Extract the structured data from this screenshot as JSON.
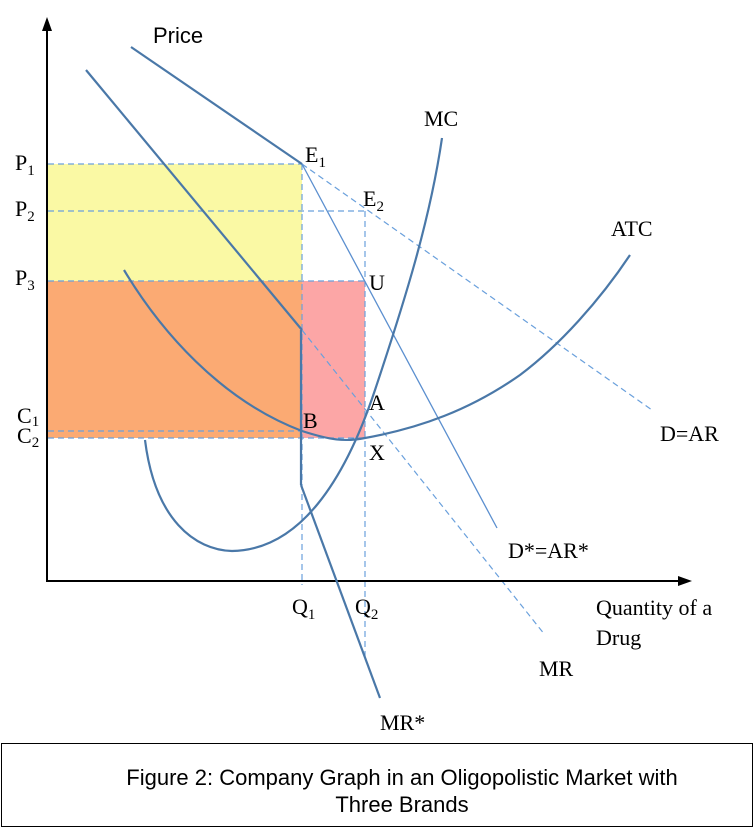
{
  "diagram": {
    "axis_y_title": "Price",
    "axis_x_title_line1": "Quantity of a",
    "axis_x_title_line2": "Drug",
    "price_levels": [
      {
        "main": "P",
        "sub": "1"
      },
      {
        "main": "P",
        "sub": "2"
      },
      {
        "main": "P",
        "sub": "3"
      },
      {
        "main": "C",
        "sub": "1"
      },
      {
        "main": "C",
        "sub": "2"
      }
    ],
    "quantity_levels": [
      {
        "main": "Q",
        "sub": "1"
      },
      {
        "main": "Q",
        "sub": "2"
      }
    ],
    "points": {
      "e1": {
        "main": "E",
        "sub": "1"
      },
      "e2": {
        "main": "E",
        "sub": "2"
      },
      "u": "U",
      "a": "A",
      "b": "B",
      "x": "X"
    },
    "curves": {
      "mc": "MC",
      "atc": "ATC",
      "d": "D=AR",
      "d_star": "D*=AR*",
      "mr": "MR",
      "mr_star": "MR*"
    },
    "colors": {
      "yellow_area": "#faf9a4",
      "orange_area": "#fbaa73",
      "pink_area": "#fca6a6",
      "curve": "#4a78a8",
      "dashed": "#6aa0dc"
    }
  },
  "caption": {
    "line1": "Figure 2: Company Graph in an Oligopolistic Market with",
    "line2": "Three Brands"
  }
}
